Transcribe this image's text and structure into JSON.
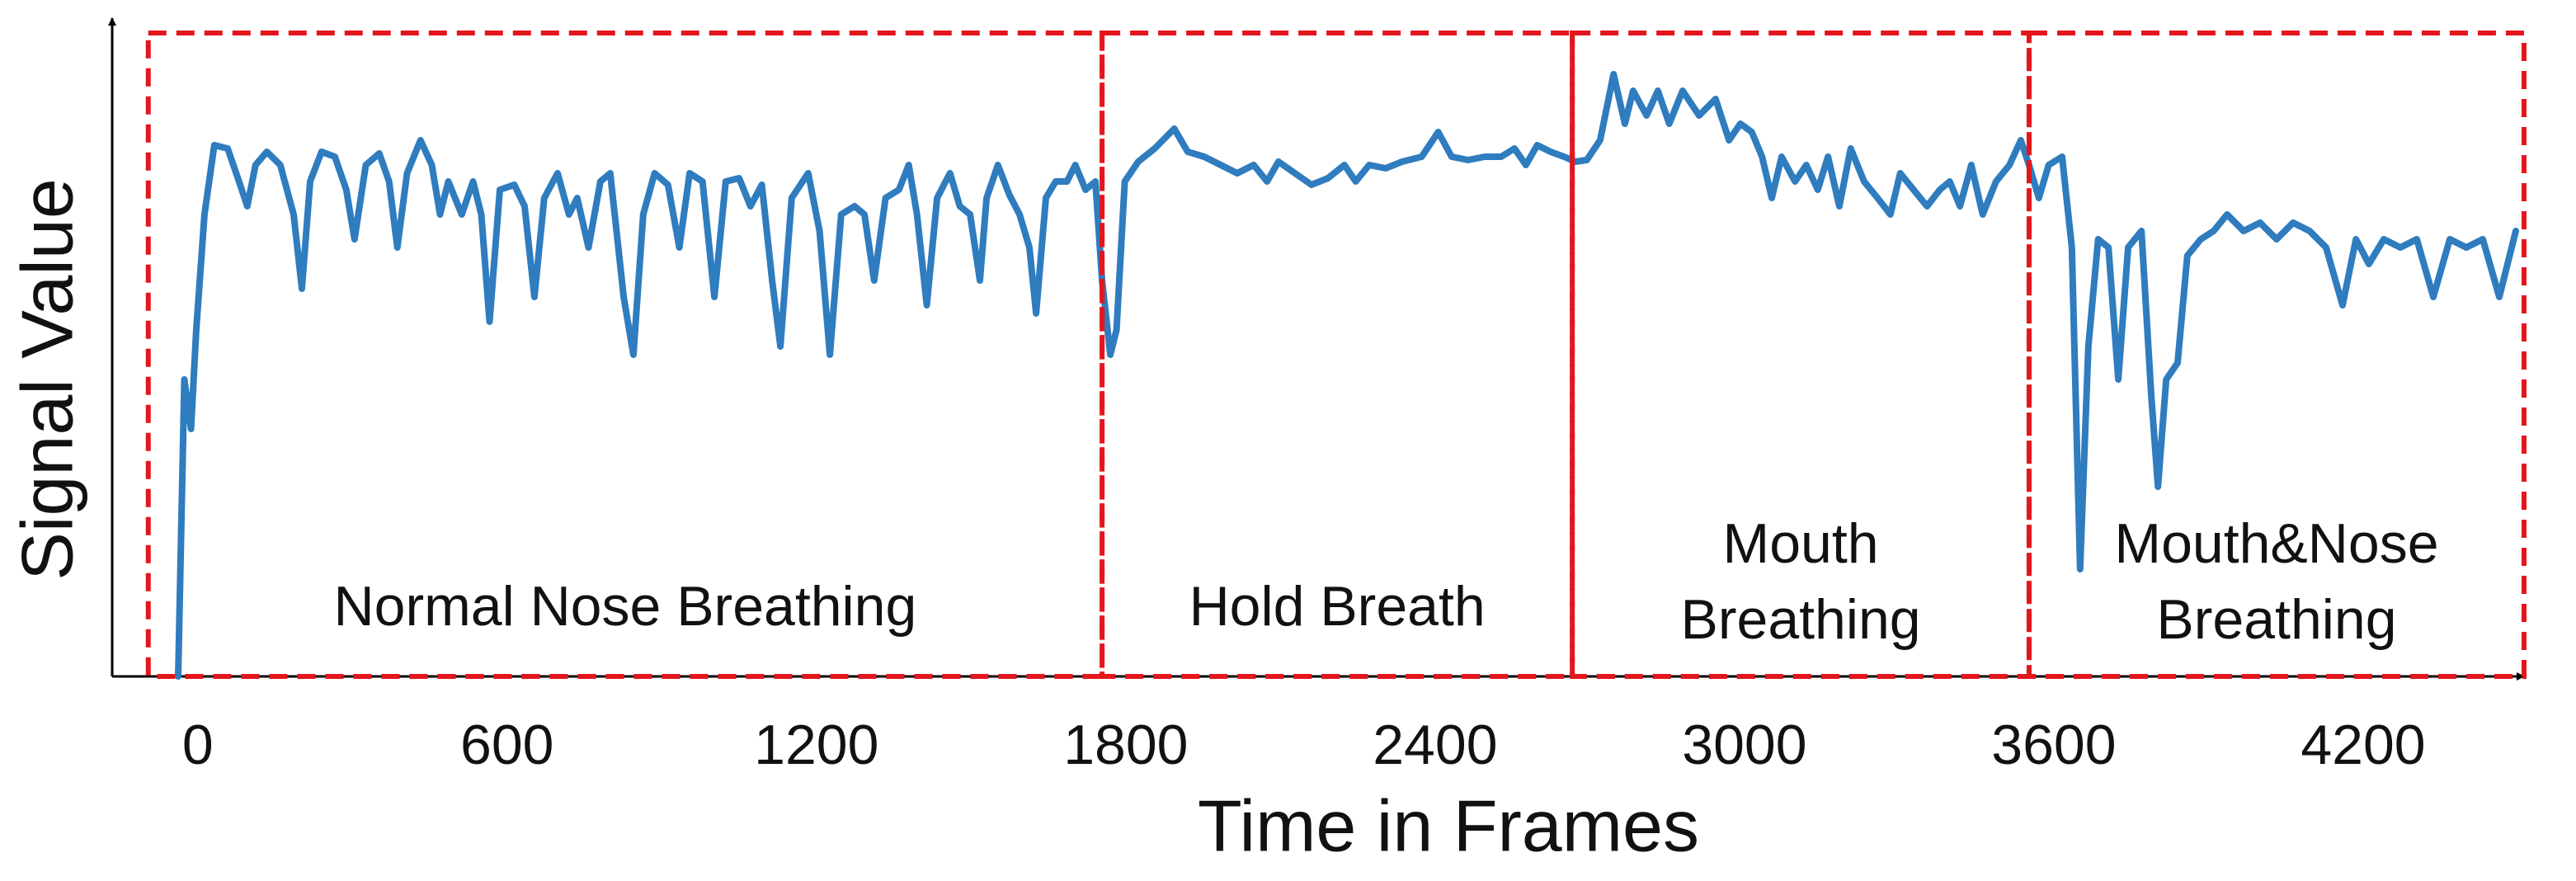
{
  "chart_data": {
    "type": "line",
    "xlabel": "Time in Frames",
    "ylabel": "Signal Value",
    "xlim": [
      -166,
      4512
    ],
    "ylim": [
      0,
      400
    ],
    "xticks": [
      0,
      600,
      1200,
      1800,
      2400,
      3000,
      3600,
      4200
    ],
    "grid": false,
    "color": "#2f7cbf",
    "x": [
      -38,
      -26,
      -13,
      -3,
      13,
      32,
      58,
      80,
      96,
      112,
      134,
      160,
      186,
      202,
      218,
      240,
      266,
      288,
      304,
      326,
      352,
      371,
      387,
      406,
      432,
      454,
      470,
      486,
      512,
      534,
      550,
      566,
      586,
      614,
      634,
      653,
      672,
      698,
      720,
      736,
      758,
      781,
      800,
      826,
      845,
      864,
      886,
      912,
      934,
      954,
      979,
      1002,
      1024,
      1050,
      1072,
      1094,
      1114,
      1130,
      1152,
      1184,
      1206,
      1226,
      1248,
      1274,
      1293,
      1312,
      1334,
      1360,
      1379,
      1395,
      1414,
      1434,
      1459,
      1478,
      1498,
      1517,
      1530,
      1552,
      1574,
      1594,
      1613,
      1626,
      1645,
      1664,
      1686,
      1702,
      1722,
      1741,
      1754,
      1770,
      1782,
      1798,
      1824,
      1856,
      1894,
      1920,
      1952,
      1984,
      2016,
      2048,
      2074,
      2096,
      2128,
      2160,
      2192,
      2224,
      2246,
      2272,
      2304,
      2336,
      2374,
      2406,
      2432,
      2464,
      2496,
      2528,
      2554,
      2576,
      2598,
      2624,
      2650,
      2672,
      2694,
      2720,
      2746,
      2768,
      2784,
      2810,
      2832,
      2854,
      2880,
      2912,
      2944,
      2970,
      2992,
      3014,
      3034,
      3053,
      3072,
      3098,
      3120,
      3142,
      3162,
      3184,
      3206,
      3232,
      3258,
      3283,
      3302,
      3328,
      3354,
      3379,
      3398,
      3418,
      3440,
      3462,
      3488,
      3514,
      3536,
      3552,
      3571,
      3590,
      3616,
      3635,
      3651,
      3667,
      3686,
      3706,
      3725,
      3744,
      3770,
      3789,
      3802,
      3818,
      3840,
      3859,
      3885,
      3910,
      3936,
      3968,
      4000,
      4032,
      4064,
      4096,
      4128,
      4160,
      4186,
      4211,
      4240,
      4272,
      4304,
      4336,
      4368,
      4400,
      4432,
      4464,
      4496
    ],
    "values": [
      0,
      180,
      150,
      210,
      280,
      322,
      320,
      300,
      285,
      310,
      318,
      310,
      280,
      235,
      300,
      318,
      315,
      295,
      265,
      310,
      317,
      300,
      260,
      305,
      325,
      310,
      280,
      300,
      280,
      300,
      280,
      215,
      295,
      298,
      285,
      230,
      290,
      305,
      280,
      290,
      260,
      300,
      305,
      230,
      195,
      280,
      305,
      298,
      260,
      305,
      300,
      230,
      300,
      302,
      285,
      298,
      240,
      200,
      290,
      305,
      270,
      195,
      280,
      285,
      280,
      240,
      290,
      295,
      310,
      280,
      225,
      290,
      305,
      285,
      280,
      240,
      290,
      310,
      292,
      280,
      260,
      220,
      290,
      300,
      300,
      310,
      295,
      300,
      240,
      195,
      210,
      300,
      312,
      320,
      332,
      318,
      315,
      310,
      305,
      310,
      300,
      312,
      305,
      298,
      302,
      310,
      300,
      310,
      308,
      312,
      315,
      330,
      315,
      313,
      315,
      315,
      320,
      310,
      322,
      318,
      315,
      312,
      313,
      325,
      365,
      335,
      355,
      340,
      355,
      335,
      355,
      340,
      350,
      325,
      335,
      330,
      315,
      290,
      315,
      300,
      310,
      295,
      315,
      285,
      320,
      300,
      290,
      280,
      305,
      295,
      285,
      295,
      300,
      285,
      310,
      280,
      300,
      310,
      325,
      310,
      290,
      310,
      315,
      260,
      65,
      200,
      265,
      260,
      180,
      260,
      270,
      170,
      115,
      180,
      190,
      255,
      265,
      270,
      280,
      270,
      275,
      265,
      275,
      270,
      260,
      225,
      265,
      250,
      265,
      260,
      265,
      230,
      265,
      260,
      265,
      230,
      270
    ],
    "regions": [
      {
        "label": [
          "Normal Nose Breathing"
        ],
        "start": -96,
        "end": 1754
      },
      {
        "label": [
          "Hold Breath"
        ],
        "start": 1754,
        "end": 2666
      },
      {
        "label": [
          "Mouth",
          "Breathing"
        ],
        "start": 2666,
        "end": 3552
      },
      {
        "label": [
          "Mouth&Nose",
          "Breathing"
        ],
        "start": 3552,
        "end": 4512
      }
    ]
  }
}
